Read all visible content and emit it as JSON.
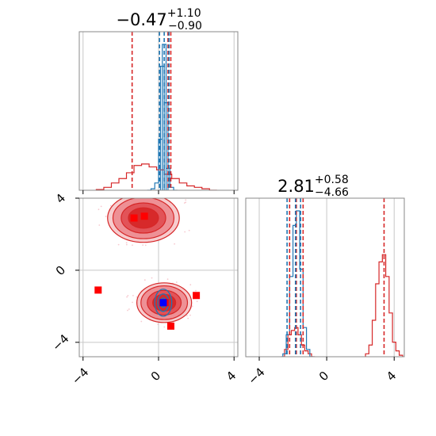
{
  "titles": {
    "p1": {
      "median": "−0.47",
      "plus": "+1.10",
      "minus": "−0.90"
    },
    "p2": {
      "median": "2.81",
      "plus": "+0.58",
      "minus": "−4.66"
    }
  },
  "chart_data": [
    {
      "type": "histogram",
      "panel": "parameter 1 marginal",
      "xlim": [
        -4.2,
        4.2
      ],
      "x_ticks": [
        "−4",
        "0",
        "4"
      ],
      "grid": true,
      "series": [
        {
          "name": "",
          "color": "#d62728",
          "bins_x": [
            -3.1,
            -2.7,
            -2.3,
            -1.9,
            -1.5,
            -1.1,
            -0.7,
            -0.3,
            0.1,
            0.5,
            0.9,
            1.3,
            1.7,
            2.1,
            2.5,
            2.9
          ],
          "heights": [
            0.005,
            0.02,
            0.05,
            0.08,
            0.12,
            0.17,
            0.18,
            0.16,
            0.14,
            0.11,
            0.08,
            0.05,
            0.03,
            0.02,
            0.01,
            0.0
          ]
        },
        {
          "name": "",
          "color": "#1f77b4",
          "bins_x": [
            -0.5,
            -0.3,
            -0.1,
            0.1,
            0.2,
            0.3,
            0.4,
            0.5,
            0.7,
            0.9
          ],
          "heights": [
            0.0,
            0.01,
            0.05,
            0.35,
            0.85,
            1.0,
            0.6,
            0.15,
            0.02,
            0.0
          ]
        }
      ],
      "vlines": [
        {
          "x": -1.4,
          "color": "#d62728",
          "style": "dashed"
        },
        {
          "x": 0.5,
          "color": "#d62728",
          "style": "dashed"
        },
        {
          "x": 0.65,
          "color": "#d62728",
          "style": "dashed"
        },
        {
          "x": 0.05,
          "color": "#1f77b4",
          "style": "dashed"
        },
        {
          "x": 0.3,
          "color": "#1f77b4",
          "style": "dashed"
        },
        {
          "x": 0.55,
          "color": "#1f77b4",
          "style": "dashed"
        }
      ]
    },
    {
      "type": "contour",
      "panel": "joint parameter 1 vs parameter 2",
      "xlim": [
        -4.2,
        4.2
      ],
      "ylim": [
        -4.8,
        4.0
      ],
      "x_ticks": [
        "−4",
        "0",
        "4"
      ],
      "y_ticks": [
        "−4",
        "0",
        "4"
      ],
      "grid": true,
      "red_modes": [
        {
          "cx": -0.8,
          "cy": 2.9,
          "rx": 1.9,
          "ry": 1.35
        },
        {
          "cx": 0.3,
          "cy": -1.8,
          "rx": 1.45,
          "ry": 1.1
        }
      ],
      "blue_mode": {
        "cx": 0.25,
        "cy": -1.8,
        "rx": 0.45,
        "ry": 0.75
      },
      "points": [
        {
          "x": -1.3,
          "y": 2.9,
          "color": "#ff0000"
        },
        {
          "x": -0.75,
          "y": 3.0,
          "color": "#ff0000"
        },
        {
          "x": -3.2,
          "y": -1.1,
          "color": "#ff0000"
        },
        {
          "x": 2.0,
          "y": -1.4,
          "color": "#ff0000"
        },
        {
          "x": 0.35,
          "y": -1.8,
          "color": "#ff0000"
        },
        {
          "x": 0.65,
          "y": -3.1,
          "color": "#ff0000"
        },
        {
          "x": 0.25,
          "y": -1.8,
          "color": "#0000ff"
        }
      ]
    },
    {
      "type": "histogram",
      "panel": "parameter 2 marginal",
      "xlim": [
        -4.8,
        4.6
      ],
      "x_ticks": [
        "−4",
        "0",
        "4"
      ],
      "grid": true,
      "series": [
        {
          "name": "",
          "color": "#d62728",
          "bins_x": [
            -2.6,
            -2.4,
            -2.2,
            -2.0,
            -1.8,
            -1.6,
            -1.4,
            -1.2,
            -1.0,
            -0.8,
            2.4,
            2.6,
            2.8,
            3.0,
            3.2,
            3.4,
            3.6,
            3.8,
            4.0,
            4.2,
            4.4
          ],
          "heights": [
            0.0,
            0.05,
            0.15,
            0.18,
            0.2,
            0.15,
            0.08,
            0.04,
            0.02,
            0.0,
            0.02,
            0.08,
            0.25,
            0.5,
            0.65,
            0.7,
            0.55,
            0.3,
            0.1,
            0.04,
            0.01
          ]
        },
        {
          "name": "",
          "color": "#1f77b4",
          "bins_x": [
            -2.5,
            -2.3,
            -2.1,
            -1.9,
            -1.7,
            -1.5,
            -1.3,
            -1.1,
            -0.9
          ],
          "heights": [
            0.02,
            0.15,
            0.55,
            0.9,
            1.0,
            0.6,
            0.2,
            0.05,
            0.0
          ]
        }
      ],
      "vlines": [
        {
          "x": -2.2,
          "color": "#d62728",
          "style": "dashed"
        },
        {
          "x": -1.8,
          "color": "#d62728",
          "style": "dashed"
        },
        {
          "x": -1.4,
          "color": "#d62728",
          "style": "dashed"
        },
        {
          "x": 3.4,
          "color": "#d62728",
          "style": "dashed"
        },
        {
          "x": -2.35,
          "color": "#1f77b4",
          "style": "dashed"
        },
        {
          "x": -1.85,
          "color": "#1f77b4",
          "style": "dashed"
        },
        {
          "x": -1.55,
          "color": "#1f77b4",
          "style": "dashed"
        }
      ]
    }
  ]
}
